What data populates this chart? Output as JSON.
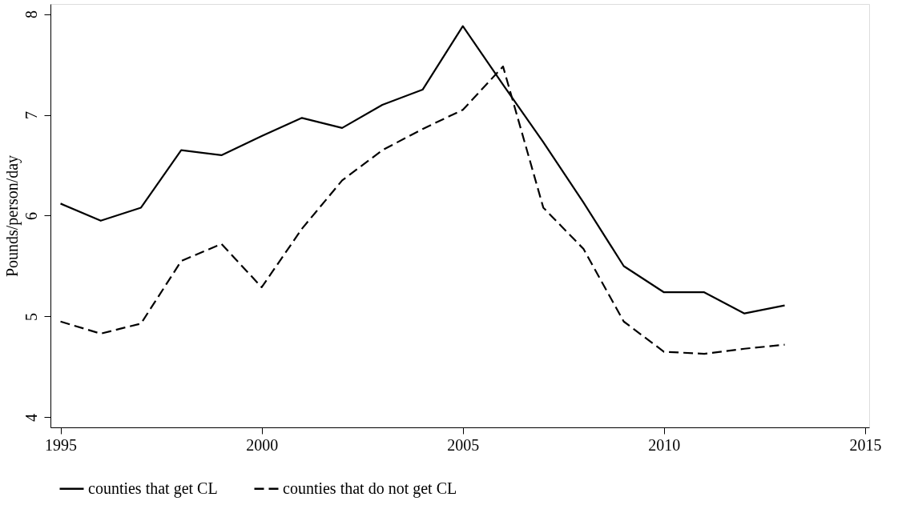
{
  "chart_data": {
    "type": "line",
    "ylabel": "Pounds/person/day",
    "x": [
      1995,
      1996,
      1997,
      1998,
      1999,
      2000,
      2001,
      2002,
      2003,
      2004,
      2005,
      2006,
      2007,
      2008,
      2009,
      2010,
      2011,
      2012,
      2013
    ],
    "series": [
      {
        "name": "counties that get CL",
        "color": "#000000",
        "line_style": "solid",
        "values": [
          6.12,
          5.95,
          6.08,
          6.65,
          6.6,
          6.79,
          6.97,
          6.87,
          7.1,
          7.25,
          7.88,
          7.3,
          6.73,
          6.13,
          5.5,
          5.24,
          5.24,
          5.03,
          5.11
        ]
      },
      {
        "name": "counties that do not get CL",
        "color": "#000000",
        "line_style": "dashed",
        "values": [
          4.95,
          4.83,
          4.93,
          5.55,
          5.72,
          5.29,
          5.87,
          6.35,
          6.65,
          6.86,
          7.05,
          7.48,
          6.08,
          5.67,
          4.95,
          4.65,
          4.63,
          4.68,
          4.72
        ]
      }
    ],
    "xlim": [
      1994.75,
      2015.1
    ],
    "xticks": [
      1995,
      2000,
      2005,
      2010,
      2015
    ],
    "ylim": [
      3.9,
      8.1
    ],
    "yticks": [
      4,
      5,
      6,
      7,
      8
    ],
    "grid": false,
    "legend": "bottom",
    "marker": "none"
  }
}
